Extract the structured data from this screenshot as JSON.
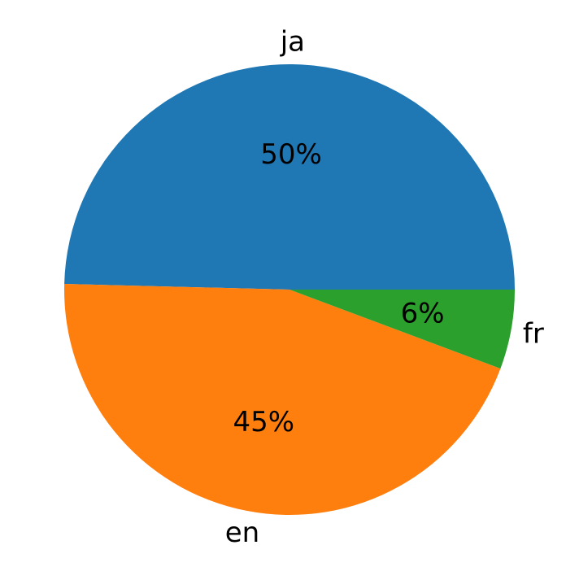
{
  "chart_data": {
    "type": "pie",
    "title": "",
    "categories": [
      "ja",
      "en",
      "fr"
    ],
    "values": [
      49.6,
      44.7,
      5.7
    ],
    "value_labels": [
      "50%",
      "45%",
      "6%"
    ],
    "colors": [
      "#1f77b4",
      "#ff7f0e",
      "#2ca02c"
    ],
    "start_angle_deg": 0,
    "direction": "counterclockwise",
    "legend": "none"
  }
}
